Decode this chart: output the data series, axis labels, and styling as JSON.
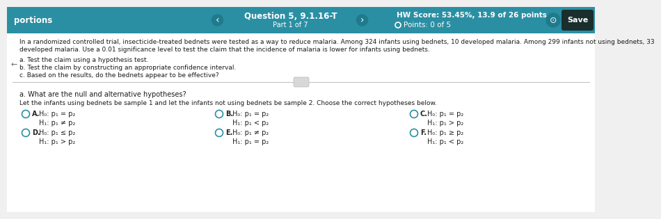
{
  "header_bg": "#2b8fa3",
  "header_text_color": "#ffffff",
  "body_bg": "#f0f0f0",
  "content_bg": "#ffffff",
  "body_text_color": "#1a1a1a",
  "left_label": "portions",
  "question_title": "Question 5, 9.1.16-T",
  "question_subtitle": "Part 1 of 7",
  "hw_score": "HW Score: 53.45%, 13.9 of 26 points",
  "points": "Points: 0 of 5",
  "save_btn": "Save",
  "body_line1": "In a randomized controlled trial, insecticide-treated bednets were tested as a way to reduce malaria. Among 324 infants using bednets, 10 developed malaria. Among 299 infants not using bednets, 33",
  "body_line2": "developed malaria. Use a 0.01 significance level to test the claim that the incidence of malaria is lower for infants using bednets.",
  "bullet_a": "a. Test the claim using a hypothesis test.",
  "bullet_b": "b. Test the claim by constructing an appropriate confidence interval.",
  "bullet_c": "c. Based on the results, do the bednets appear to be effective?",
  "section_q": "a. What are the null and alternative hypotheses?",
  "section_desc": "Let the infants using bednets be sample 1 and let the infants not using bednets be sample 2. Choose the correct hypotheses below.",
  "options": [
    {
      "label": "A.",
      "line1": "H₀: p₁ = p₂",
      "line2": "H₁: p₁ ≠ p₂"
    },
    {
      "label": "B.",
      "line1": "H₀: p₁ = p₂",
      "line2": "H₁: p₁ < p₂"
    },
    {
      "label": "C.",
      "line1": "H₀: p₁ = p₂",
      "line2": "H₁: p₁ > p₂"
    },
    {
      "label": "D.",
      "line1": "H₀: p₁ ≤ p₂",
      "line2": "H₁: p₁ > p₂"
    },
    {
      "label": "E.",
      "line1": "H₀: p₁ ≠ p₂",
      "line2": "H₁: p₁ = p₂"
    },
    {
      "label": "F.",
      "line1": "H₀: p₁ ≥ p₂",
      "line2": "H₁: p₁ < p₂"
    }
  ],
  "nav_btn_color": "#1e7a8c",
  "save_btn_color": "#1a2e2e",
  "divider_color": "#bbbbbb",
  "radio_color": "#2b8fa3",
  "option_text_color": "#222222",
  "arrow_btn_color": "#1d7288"
}
